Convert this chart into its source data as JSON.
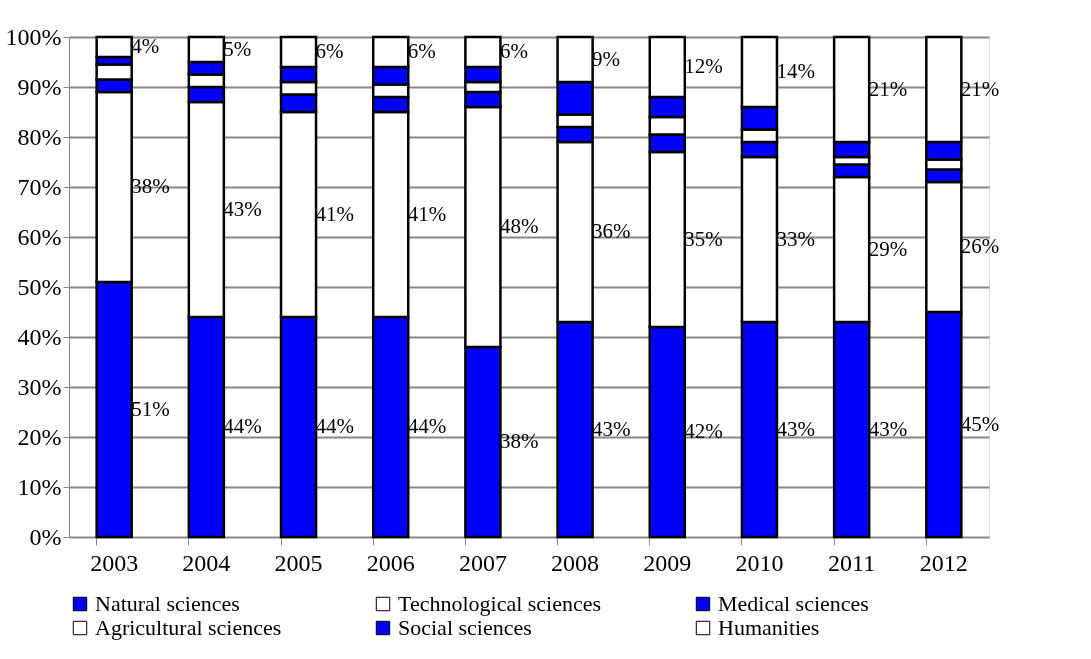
{
  "chart_data": {
    "type": "bar",
    "stacked": true,
    "categories": [
      "2003",
      "2004",
      "2005",
      "2006",
      "2007",
      "2008",
      "2009",
      "2010",
      "2011",
      "2012"
    ],
    "series": [
      {
        "name": "Natural sciences",
        "color": "#0000ff",
        "values": [
          51,
          44,
          44,
          44,
          38,
          43,
          42,
          43,
          43,
          45
        ],
        "value_labels": [
          "51%",
          "44%",
          "44%",
          "44%",
          "38%",
          "43%",
          "42%",
          "43%",
          "43%",
          "45%"
        ]
      },
      {
        "name": "Technological sciences",
        "color": "#ffffff",
        "values": [
          38,
          43,
          41,
          41,
          48,
          36,
          35,
          33,
          29,
          26
        ],
        "value_labels": [
          "38%",
          "43%",
          "41%",
          "41%",
          "48%",
          "36%",
          "35%",
          "33%",
          "29%",
          "26%"
        ]
      },
      {
        "name": "Medical sciences",
        "color": "#0000ff",
        "values": [
          2.5,
          3,
          3.5,
          3,
          3,
          3,
          3.5,
          3,
          2.5,
          2.5
        ]
      },
      {
        "name": "Agricultural sciences",
        "color": "#ffffff",
        "values": [
          3,
          2.5,
          2.5,
          2.5,
          2,
          2.5,
          3.5,
          2.5,
          1.5,
          2
        ]
      },
      {
        "name": "Social sciences",
        "color": "#0000ff",
        "values": [
          1.5,
          2.5,
          3,
          3.5,
          3,
          6.5,
          4,
          4.5,
          3,
          3.5
        ]
      },
      {
        "name": "Humanities",
        "color": "#ffffff",
        "values": [
          4,
          5,
          6,
          6,
          6,
          9,
          12,
          14,
          21,
          21
        ],
        "value_labels": [
          "4%",
          "5%",
          "6%",
          "6%",
          "6%",
          "9%",
          "12%",
          "14%",
          "21%",
          "21%"
        ]
      }
    ],
    "ylim": [
      0,
      100
    ],
    "yticks": [
      {
        "value": 0,
        "label": "0%"
      },
      {
        "value": 10,
        "label": "10%"
      },
      {
        "value": 20,
        "label": "20%"
      },
      {
        "value": 30,
        "label": "30%"
      },
      {
        "value": 40,
        "label": "40%"
      },
      {
        "value": 50,
        "label": "50%"
      },
      {
        "value": 60,
        "label": "60%"
      },
      {
        "value": 70,
        "label": "70%"
      },
      {
        "value": 80,
        "label": "80%"
      },
      {
        "value": 90,
        "label": "90%"
      },
      {
        "value": 100,
        "label": "100%"
      }
    ],
    "grid": "y",
    "legend": "bottom"
  }
}
